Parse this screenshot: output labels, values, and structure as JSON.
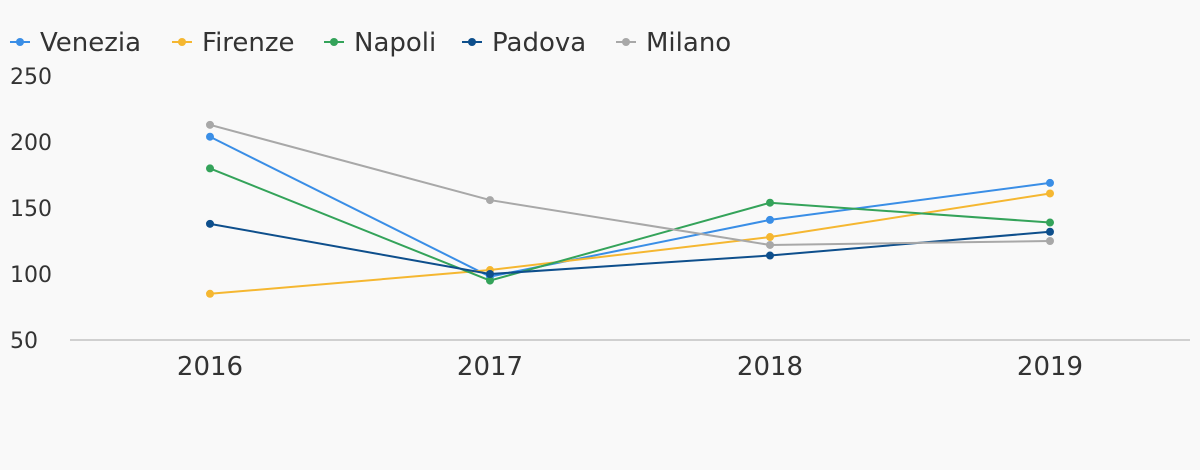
{
  "chart_data": {
    "type": "line",
    "title": "",
    "xlabel": "",
    "ylabel": "",
    "categories": [
      "2016",
      "2017",
      "2018",
      "2019"
    ],
    "ylim": [
      50,
      250
    ],
    "y_ticks": [
      50,
      100,
      150,
      200,
      250
    ],
    "grid": false,
    "legend_position": "top-left",
    "series": [
      {
        "name": "Venezia",
        "color": "#3a8ee6",
        "values": [
          204,
          98,
          141,
          169
        ]
      },
      {
        "name": "Firenze",
        "color": "#f5b731",
        "values": [
          85,
          103,
          128,
          161
        ]
      },
      {
        "name": "Napoli",
        "color": "#34a35a",
        "values": [
          180,
          95,
          154,
          139
        ]
      },
      {
        "name": "Padova",
        "color": "#0e4f8c",
        "values": [
          138,
          100,
          114,
          132
        ]
      },
      {
        "name": "Milano",
        "color": "#a8a8a8",
        "values": [
          213,
          156,
          122,
          125
        ]
      }
    ]
  }
}
